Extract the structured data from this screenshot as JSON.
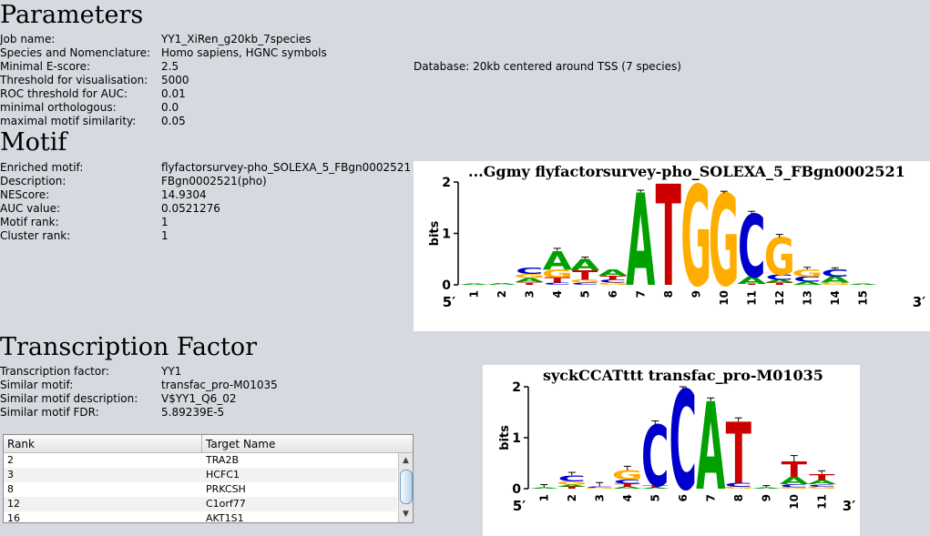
{
  "parameters": {
    "title": "Parameters",
    "rows": [
      {
        "label": "Job name:",
        "value": "YY1_XiRen_g20kb_7species"
      },
      {
        "label": "Species and Nomenclature:",
        "value": "Homo sapiens, HGNC symbols"
      },
      {
        "label": "Minimal E-score:",
        "value": "2.5"
      },
      {
        "label": "Threshold for visualisation:",
        "value": "5000"
      },
      {
        "label": "ROC threshold for AUC:",
        "value": "0.01"
      },
      {
        "label": "minimal orthologous:",
        "value": "0.0"
      },
      {
        "label": "maximal motif similarity:",
        "value": "0.05"
      }
    ],
    "database": "Database: 20kb centered around TSS (7 species)"
  },
  "motif": {
    "title": "Motif",
    "rows": [
      {
        "label": "Enriched motif:",
        "value": "flyfactorsurvey-pho_SOLEXA_5_FBgn0002521"
      },
      {
        "label": "Description:",
        "value": "FBgn0002521(pho)"
      },
      {
        "label": "NEScore:",
        "value": "14.9304"
      },
      {
        "label": "AUC value:",
        "value": "0.0521276"
      },
      {
        "label": "Motif rank:",
        "value": "1"
      },
      {
        "label": "Cluster rank:",
        "value": "1"
      }
    ],
    "logo": {
      "title": "...Ggmy flyfactorsurvey-pho_SOLEXA_5_FBgn0002521",
      "ylabel": "bits",
      "yticks": [
        "0",
        "1",
        "2"
      ],
      "xticks": [
        "1",
        "2",
        "3",
        "4",
        "5",
        "6",
        "7",
        "8",
        "9",
        "10",
        "11",
        "12",
        "13",
        "14",
        "15"
      ],
      "five": "5′",
      "three": "3′"
    }
  },
  "tf": {
    "title": "Transcription Factor",
    "rows": [
      {
        "label": "Transcription factor:",
        "value": "YY1"
      },
      {
        "label": "Similar motif:",
        "value": "transfac_pro-M01035"
      },
      {
        "label": "Similar motif description:",
        "value": "V$YY1_Q6_02"
      },
      {
        "label": "Similar motif FDR:",
        "value": "5.89239E-5"
      }
    ],
    "logo": {
      "title": "syckCCATttt transfac_pro-M01035",
      "ylabel": "bits",
      "yticks": [
        "0",
        "1",
        "2"
      ],
      "xticks": [
        "1",
        "2",
        "3",
        "4",
        "5",
        "6",
        "7",
        "8",
        "9",
        "10",
        "11"
      ],
      "five": "5′",
      "three": "3′"
    }
  },
  "table": {
    "headers": [
      "Rank",
      "Target Name"
    ],
    "rows": [
      {
        "rank": "2",
        "name": "TRA2B"
      },
      {
        "rank": "3",
        "name": "HCFC1"
      },
      {
        "rank": "8",
        "name": "PRKCSH"
      },
      {
        "rank": "12",
        "name": "C1orf77"
      },
      {
        "rank": "16",
        "name": "AKT1S1"
      }
    ],
    "scroll_up_icon": "triangle-up",
    "scroll_down_icon": "triangle-down"
  },
  "colors": {
    "A": "#00a000",
    "C": "#0000cc",
    "G": "#ffae00",
    "T": "#cc0000"
  }
}
